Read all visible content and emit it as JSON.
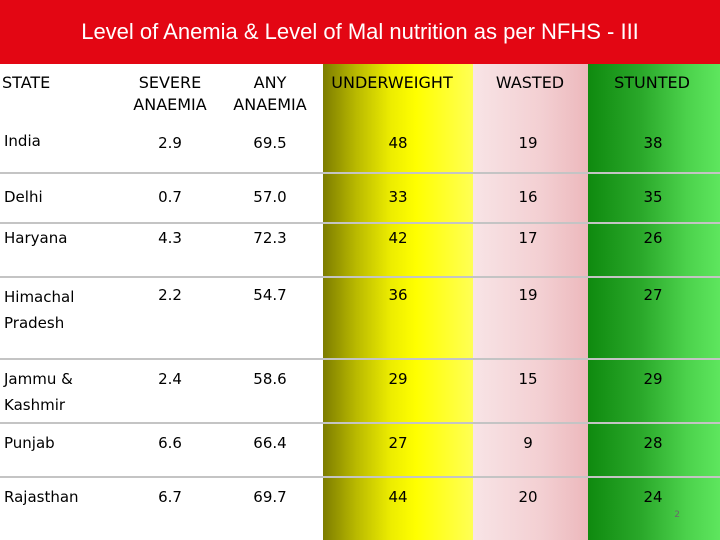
{
  "title": "Level of Anemia & Level of Mal nutrition as per NFHS - III",
  "columns": {
    "state": "STATE",
    "severe_line1": "SEVERE",
    "severe_line2": "ANAEMIA",
    "any_line1": "ANY",
    "any_line2": "ANAEMIA",
    "underweight": "UNDERWEIGHT",
    "wasted": "WASTED",
    "stunted": "STUNTED"
  },
  "rows": [
    {
      "state_line1": "India",
      "state_line2": "",
      "severe": "2.9",
      "any": "69.5",
      "underweight": "48",
      "wasted": "19",
      "stunted": "38"
    },
    {
      "state_line1": "Delhi",
      "state_line2": "",
      "severe": "0.7",
      "any": "57.0",
      "underweight": "33",
      "wasted": "16",
      "stunted": "35"
    },
    {
      "state_line1": "Haryana",
      "state_line2": "",
      "severe": "4.3",
      "any": "72.3",
      "underweight": "42",
      "wasted": "17",
      "stunted": "26"
    },
    {
      "state_line1": "Himachal",
      "state_line2": "Pradesh",
      "severe": "2.2",
      "any": "54.7",
      "underweight": "36",
      "wasted": "19",
      "stunted": "27"
    },
    {
      "state_line1": "Jammu &",
      "state_line2": "Kashmir",
      "severe": "2.4",
      "any": "58.6",
      "underweight": "29",
      "wasted": "15",
      "stunted": "29"
    },
    {
      "state_line1": "Punjab",
      "state_line2": "",
      "severe": "6.6",
      "any": "66.4",
      "underweight": "27",
      "wasted": "9",
      "stunted": "28"
    },
    {
      "state_line1": "Rajasthan",
      "state_line2": "",
      "severe": "6.7",
      "any": "69.7",
      "underweight": "44",
      "wasted": "20",
      "stunted": "24"
    }
  ],
  "slide_number": "2"
}
